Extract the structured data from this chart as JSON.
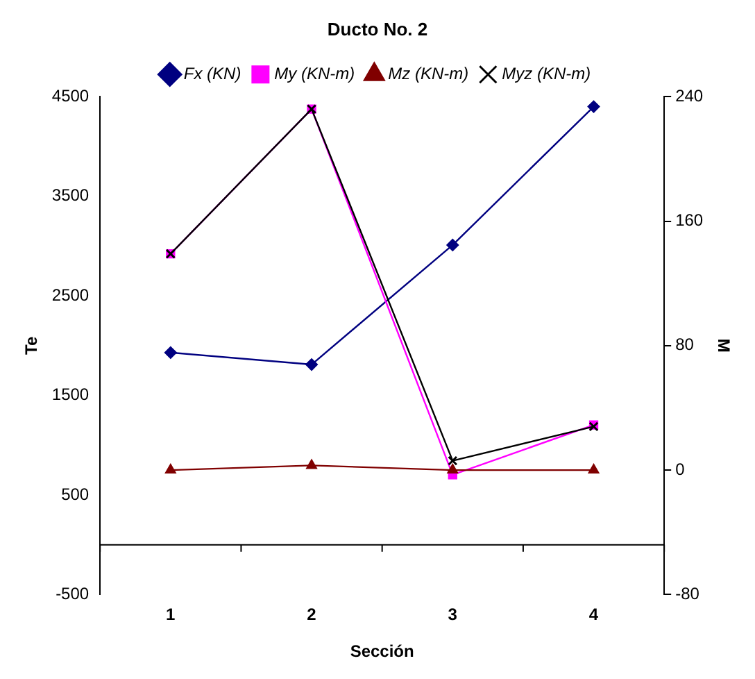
{
  "chart_data": {
    "type": "line",
    "title": "Ducto No. 2",
    "xlabel": "Sección",
    "ylabel": "Te",
    "y2label": "M",
    "categories": [
      "1",
      "2",
      "3",
      "4"
    ],
    "series": [
      {
        "name": "Fx (KN)",
        "color": "#000080",
        "marker": "diamond",
        "values": [
          1930,
          1810,
          3010,
          4400
        ]
      },
      {
        "name": "My (KN-m)",
        "color": "#ff00ff",
        "marker": "square",
        "axis": "y2",
        "values": [
          139,
          232,
          -3,
          29
        ]
      },
      {
        "name": "Mz (KN-m)",
        "color": "#800000",
        "marker": "triangle",
        "axis": "y2",
        "values": [
          0,
          3,
          0,
          0
        ]
      },
      {
        "name": "Myz (KN-m)",
        "color": "#000000",
        "marker": "cross",
        "axis": "y2",
        "values": [
          139,
          232,
          6,
          28
        ]
      }
    ],
    "ylim": [
      -500,
      4500
    ],
    "yticks": [
      -500,
      500,
      1500,
      2500,
      3500,
      4500
    ],
    "y2lim": [
      -80,
      240
    ],
    "y2ticks": [
      -80,
      0,
      80,
      160,
      240
    ],
    "legend": "top",
    "grid": false
  }
}
